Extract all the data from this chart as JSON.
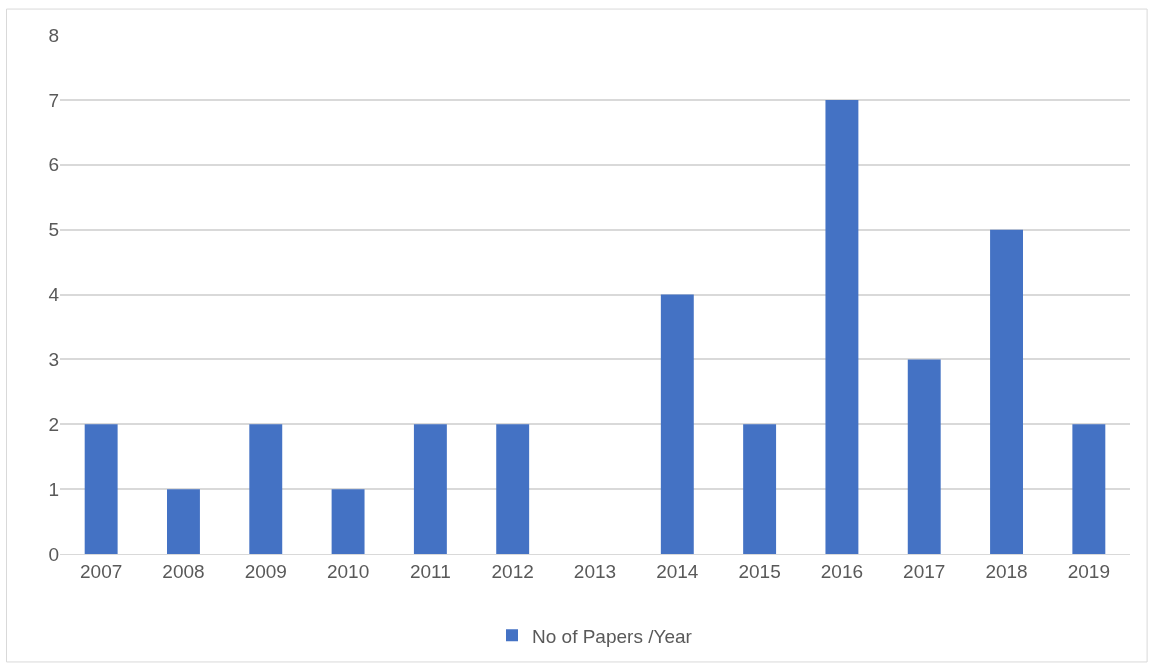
{
  "chart_data": {
    "type": "bar",
    "categories": [
      "2007",
      "2008",
      "2009",
      "2010",
      "2011",
      "2012",
      "2013",
      "2014",
      "2015",
      "2016",
      "2017",
      "2018",
      "2019"
    ],
    "series": [
      {
        "name": "No of Papers /Year",
        "color": "#4472c4",
        "values": [
          2,
          1,
          2,
          1,
          2,
          2,
          0,
          4,
          2,
          7,
          3,
          5,
          2
        ]
      }
    ],
    "ylim": [
      0,
      8
    ],
    "yticks": [
      0,
      1,
      2,
      3,
      4,
      5,
      6,
      7,
      8
    ],
    "grid": "y",
    "legend": "bottom"
  }
}
